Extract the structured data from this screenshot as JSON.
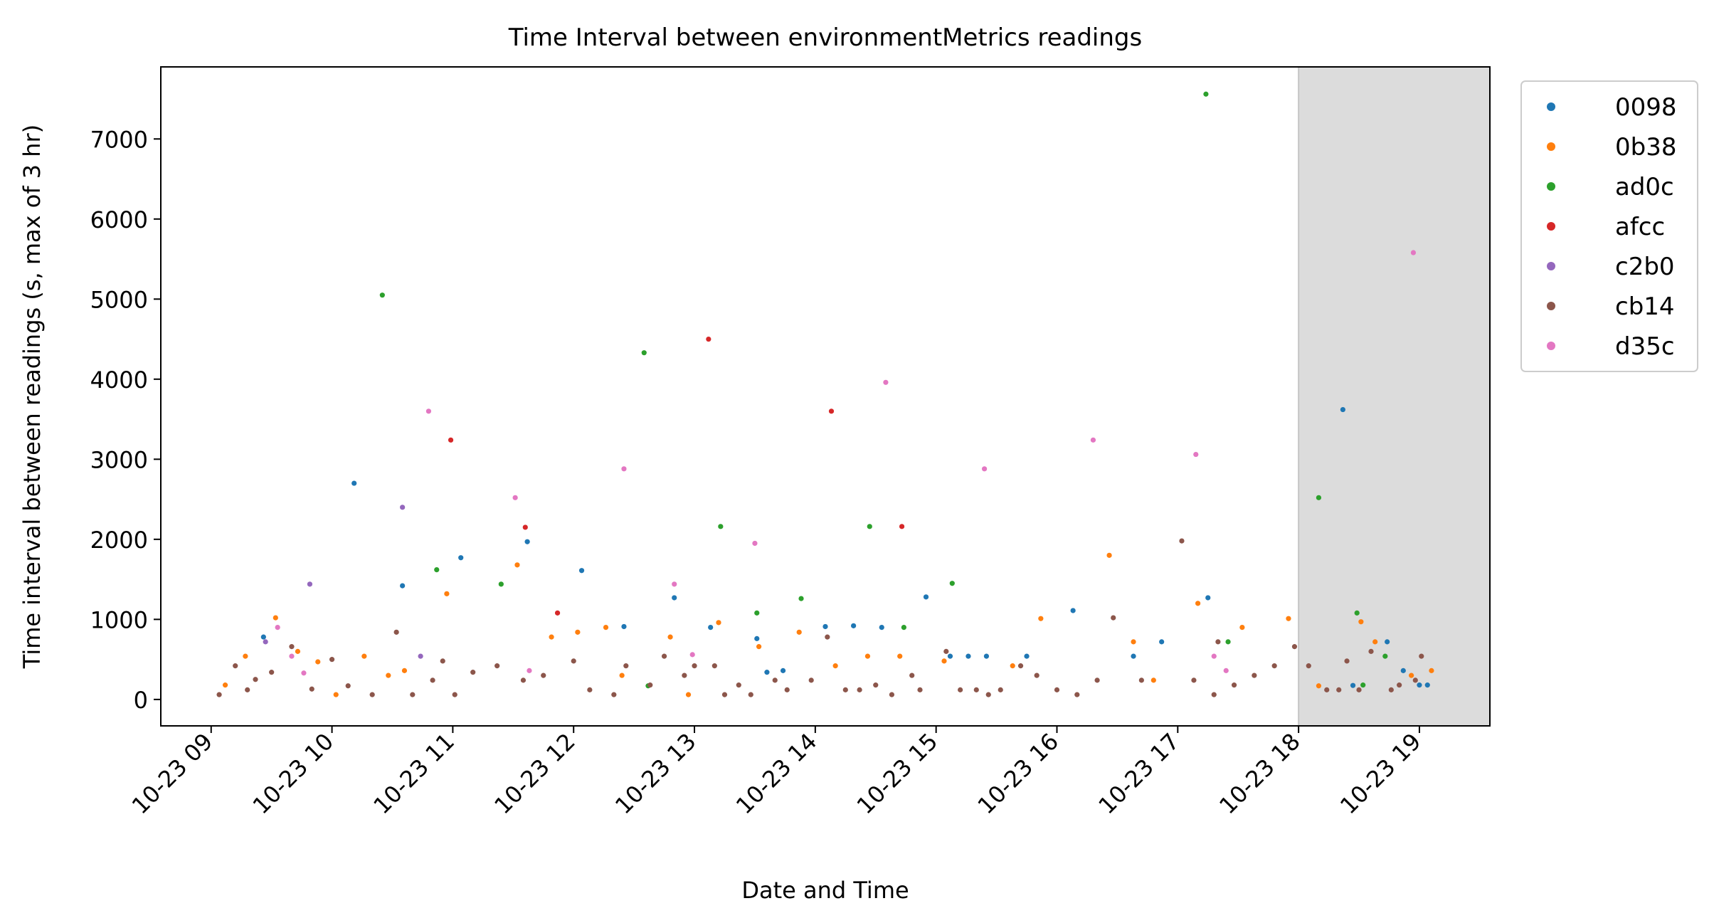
{
  "chart_data": {
    "type": "scatter",
    "title": "Time Interval between environmentMetrics readings",
    "xlabel": "Date and Time",
    "ylabel": "Time interval between readings (s, max of 3 hr)",
    "x_type": "datetime",
    "xlim": [
      "10-23 08:35",
      "10-23 19:35"
    ],
    "ylim": [
      -330,
      7900
    ],
    "yticks": [
      0,
      1000,
      2000,
      3000,
      4000,
      5000,
      6000,
      7000
    ],
    "xticks": [
      "10-23 09",
      "10-23 10",
      "10-23 11",
      "10-23 12",
      "10-23 13",
      "10-23 14",
      "10-23 15",
      "10-23 16",
      "10-23 17",
      "10-23 18",
      "10-23 19"
    ],
    "shaded_region": {
      "x_start": "10-23 18:00",
      "x_end": "10-23 19:35",
      "color": "#dcdcdc"
    },
    "legend_position": "outside-right-top",
    "grid": false,
    "series": [
      {
        "name": "0098",
        "color": "#1f77b4",
        "points": [
          [
            "10-23 09:26",
            780
          ],
          [
            "10-23 10:11",
            2700
          ],
          [
            "10-23 10:35",
            1420
          ],
          [
            "10-23 11:04",
            1770
          ],
          [
            "10-23 11:37",
            1970
          ],
          [
            "10-23 12:04",
            1610
          ],
          [
            "10-23 12:25",
            910
          ],
          [
            "10-23 12:50",
            1270
          ],
          [
            "10-23 13:08",
            900
          ],
          [
            "10-23 13:31",
            760
          ],
          [
            "10-23 13:36",
            340
          ],
          [
            "10-23 13:44",
            360
          ],
          [
            "10-23 14:05",
            910
          ],
          [
            "10-23 14:19",
            920
          ],
          [
            "10-23 14:33",
            900
          ],
          [
            "10-23 14:55",
            1280
          ],
          [
            "10-23 15:07",
            540
          ],
          [
            "10-23 15:16",
            540
          ],
          [
            "10-23 15:25",
            540
          ],
          [
            "10-23 15:45",
            540
          ],
          [
            "10-23 16:08",
            1110
          ],
          [
            "10-23 16:38",
            540
          ],
          [
            "10-23 16:52",
            720
          ],
          [
            "10-23 17:15",
            1270
          ],
          [
            "10-23 18:22",
            3620
          ],
          [
            "10-23 18:27",
            175
          ],
          [
            "10-23 18:44",
            720
          ],
          [
            "10-23 18:52",
            360
          ],
          [
            "10-23 19:00",
            180
          ],
          [
            "10-23 19:04",
            180
          ]
        ]
      },
      {
        "name": "0b38",
        "color": "#ff7f0e",
        "points": [
          [
            "10-23 09:07",
            180
          ],
          [
            "10-23 09:17",
            540
          ],
          [
            "10-23 09:32",
            1020
          ],
          [
            "10-23 09:43",
            600
          ],
          [
            "10-23 09:53",
            470
          ],
          [
            "10-23 10:02",
            60
          ],
          [
            "10-23 10:16",
            540
          ],
          [
            "10-23 10:28",
            300
          ],
          [
            "10-23 10:36",
            360
          ],
          [
            "10-23 10:57",
            1320
          ],
          [
            "10-23 11:32",
            1680
          ],
          [
            "10-23 11:49",
            780
          ],
          [
            "10-23 12:02",
            840
          ],
          [
            "10-23 12:16",
            900
          ],
          [
            "10-23 12:24",
            300
          ],
          [
            "10-23 12:48",
            780
          ],
          [
            "10-23 12:57",
            60
          ],
          [
            "10-23 13:12",
            960
          ],
          [
            "10-23 13:32",
            660
          ],
          [
            "10-23 13:52",
            840
          ],
          [
            "10-23 14:10",
            420
          ],
          [
            "10-23 14:26",
            540
          ],
          [
            "10-23 14:42",
            540
          ],
          [
            "10-23 15:04",
            480
          ],
          [
            "10-23 15:38",
            420
          ],
          [
            "10-23 15:52",
            1010
          ],
          [
            "10-23 16:26",
            1800
          ],
          [
            "10-23 16:38",
            720
          ],
          [
            "10-23 16:48",
            240
          ],
          [
            "10-23 17:10",
            1200
          ],
          [
            "10-23 17:32",
            900
          ],
          [
            "10-23 17:55",
            1010
          ],
          [
            "10-23 18:10",
            170
          ],
          [
            "10-23 18:31",
            970
          ],
          [
            "10-23 18:38",
            720
          ],
          [
            "10-23 18:56",
            300
          ],
          [
            "10-23 19:06",
            360
          ]
        ]
      },
      {
        "name": "ad0c",
        "color": "#2ca02c",
        "points": [
          [
            "10-23 10:25",
            5050
          ],
          [
            "10-23 10:52",
            1620
          ],
          [
            "10-23 11:24",
            1440
          ],
          [
            "10-23 12:35",
            4330
          ],
          [
            "10-23 12:37",
            170
          ],
          [
            "10-23 13:13",
            2160
          ],
          [
            "10-23 13:31",
            1080
          ],
          [
            "10-23 13:53",
            1260
          ],
          [
            "10-23 14:27",
            2160
          ],
          [
            "10-23 14:44",
            900
          ],
          [
            "10-23 15:08",
            1450
          ],
          [
            "10-23 17:14",
            7560
          ],
          [
            "10-23 17:25",
            720
          ],
          [
            "10-23 18:10",
            2520
          ],
          [
            "10-23 18:29",
            1080
          ],
          [
            "10-23 18:32",
            180
          ],
          [
            "10-23 18:43",
            540
          ]
        ]
      },
      {
        "name": "afcc",
        "color": "#d62728",
        "points": [
          [
            "10-23 10:59",
            3240
          ],
          [
            "10-23 11:36",
            2150
          ],
          [
            "10-23 11:52",
            1080
          ],
          [
            "10-23 13:07",
            4500
          ],
          [
            "10-23 14:08",
            3600
          ],
          [
            "10-23 14:43",
            2160
          ]
        ]
      },
      {
        "name": "c2b0",
        "color": "#9467bd",
        "points": [
          [
            "10-23 09:27",
            720
          ],
          [
            "10-23 09:49",
            1440
          ],
          [
            "10-23 10:35",
            2400
          ],
          [
            "10-23 10:44",
            540
          ]
        ]
      },
      {
        "name": "cb14",
        "color": "#8c564b",
        "points": [
          [
            "10-23 09:04",
            60
          ],
          [
            "10-23 09:12",
            420
          ],
          [
            "10-23 09:18",
            120
          ],
          [
            "10-23 09:22",
            250
          ],
          [
            "10-23 09:30",
            340
          ],
          [
            "10-23 09:40",
            660
          ],
          [
            "10-23 09:50",
            130
          ],
          [
            "10-23 10:00",
            500
          ],
          [
            "10-23 10:08",
            170
          ],
          [
            "10-23 10:20",
            60
          ],
          [
            "10-23 10:32",
            840
          ],
          [
            "10-23 10:40",
            60
          ],
          [
            "10-23 10:50",
            240
          ],
          [
            "10-23 10:55",
            480
          ],
          [
            "10-23 11:01",
            60
          ],
          [
            "10-23 11:10",
            340
          ],
          [
            "10-23 11:22",
            420
          ],
          [
            "10-23 11:35",
            240
          ],
          [
            "10-23 11:45",
            300
          ],
          [
            "10-23 12:00",
            480
          ],
          [
            "10-23 12:08",
            120
          ],
          [
            "10-23 12:20",
            60
          ],
          [
            "10-23 12:26",
            420
          ],
          [
            "10-23 12:38",
            180
          ],
          [
            "10-23 12:45",
            540
          ],
          [
            "10-23 12:55",
            300
          ],
          [
            "10-23 13:00",
            420
          ],
          [
            "10-23 13:10",
            420
          ],
          [
            "10-23 13:15",
            60
          ],
          [
            "10-23 13:22",
            180
          ],
          [
            "10-23 13:28",
            60
          ],
          [
            "10-23 13:40",
            240
          ],
          [
            "10-23 13:46",
            120
          ],
          [
            "10-23 13:58",
            240
          ],
          [
            "10-23 14:06",
            780
          ],
          [
            "10-23 14:15",
            120
          ],
          [
            "10-23 14:22",
            120
          ],
          [
            "10-23 14:30",
            180
          ],
          [
            "10-23 14:38",
            60
          ],
          [
            "10-23 14:48",
            300
          ],
          [
            "10-23 14:52",
            120
          ],
          [
            "10-23 15:05",
            600
          ],
          [
            "10-23 15:12",
            120
          ],
          [
            "10-23 15:20",
            120
          ],
          [
            "10-23 15:26",
            60
          ],
          [
            "10-23 15:32",
            120
          ],
          [
            "10-23 15:42",
            420
          ],
          [
            "10-23 15:50",
            300
          ],
          [
            "10-23 16:00",
            120
          ],
          [
            "10-23 16:10",
            60
          ],
          [
            "10-23 16:20",
            240
          ],
          [
            "10-23 16:28",
            1020
          ],
          [
            "10-23 16:42",
            240
          ],
          [
            "10-23 17:02",
            1980
          ],
          [
            "10-23 17:08",
            240
          ],
          [
            "10-23 17:18",
            60
          ],
          [
            "10-23 17:20",
            720
          ],
          [
            "10-23 17:28",
            180
          ],
          [
            "10-23 17:38",
            300
          ],
          [
            "10-23 17:48",
            420
          ],
          [
            "10-23 17:58",
            660
          ],
          [
            "10-23 18:05",
            420
          ],
          [
            "10-23 18:14",
            120
          ],
          [
            "10-23 18:20",
            120
          ],
          [
            "10-23 18:24",
            480
          ],
          [
            "10-23 18:30",
            120
          ],
          [
            "10-23 18:36",
            600
          ],
          [
            "10-23 18:46",
            120
          ],
          [
            "10-23 18:50",
            180
          ],
          [
            "10-23 18:58",
            240
          ],
          [
            "10-23 19:01",
            540
          ]
        ]
      },
      {
        "name": "d35c",
        "color": "#e377c2",
        "points": [
          [
            "10-23 09:33",
            900
          ],
          [
            "10-23 09:40",
            540
          ],
          [
            "10-23 09:46",
            330
          ],
          [
            "10-23 10:48",
            3600
          ],
          [
            "10-23 11:31",
            2520
          ],
          [
            "10-23 11:38",
            360
          ],
          [
            "10-23 12:25",
            2880
          ],
          [
            "10-23 12:50",
            1440
          ],
          [
            "10-23 12:59",
            560
          ],
          [
            "10-23 13:30",
            1950
          ],
          [
            "10-23 14:35",
            3960
          ],
          [
            "10-23 15:24",
            2880
          ],
          [
            "10-23 16:18",
            3240
          ],
          [
            "10-23 17:09",
            3060
          ],
          [
            "10-23 17:18",
            540
          ],
          [
            "10-23 17:24",
            360
          ],
          [
            "10-23 18:57",
            5580
          ]
        ]
      }
    ]
  }
}
